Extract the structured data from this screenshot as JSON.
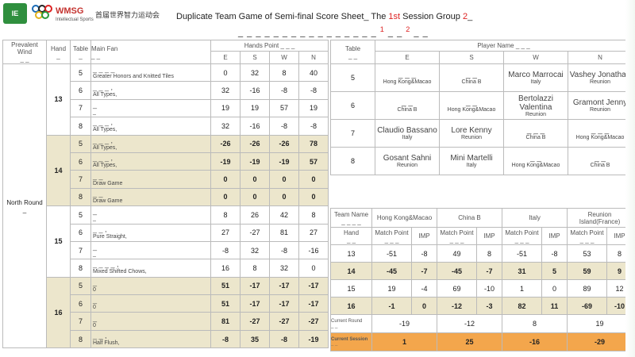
{
  "header": {
    "logo1_text": "IE",
    "logo_text": "WMSG",
    "logo_sub": "Intellectual Sports",
    "logo_cn": "首届世界智力运动会",
    "title_part1": "Duplicate Team Game of Semi-final Score Sheet_ The ",
    "title_session": "1st",
    "title_part2": " Session Group ",
    "title_group": "2",
    "title_tail": "_",
    "title_cn_part1": "_ _ _ _ _ _ _ _ _ _ _ _ _ _ _ _ ",
    "title_cn_red": "1",
    "title_cn_part2": " _ _ ",
    "title_cn_red2": "2",
    "title_cn_part3": " _ _"
  },
  "left": {
    "h_prevalent": "Prevalent Wind",
    "h_prevalent_cn": "_ _",
    "h_hand": "Hand",
    "h_hand_cn": "_",
    "h_table": "Table",
    "h_table_cn": "_",
    "h_mainfan": "Main Fan",
    "h_mainfan_cn": "_ _",
    "h_hands_point": "Hands Point",
    "h_hands_point_cn": "_ _ _",
    "h_e": "E",
    "h_s": "S",
    "h_w": "W",
    "h_n": "N",
    "wind": "North Round",
    "wind_cn": "_",
    "hands": [
      {
        "num": "13",
        "rows": [
          {
            "t": "5",
            "cn": "_ _ _ _",
            "en": "Greater Honors and Knitted Tiles",
            "e": "0",
            "s": "32",
            "w": "8",
            "n": "40",
            "beige": false
          },
          {
            "t": "6",
            "cn": "_ _ _ ,",
            "en": "All Types,",
            "e": "32",
            "s": "-16",
            "w": "-8",
            "n": "-8",
            "beige": false
          },
          {
            "t": "7",
            "cn": "_",
            "en": "_",
            "e": "19",
            "s": "19",
            "w": "57",
            "n": "19",
            "beige": false
          },
          {
            "t": "8",
            "cn": "_ _ _ ,",
            "en": "All Types,",
            "e": "32",
            "s": "-16",
            "w": "-8",
            "n": "-8",
            "beige": false
          }
        ]
      },
      {
        "num": "14",
        "rows": [
          {
            "t": "5",
            "cn": "_ _ _ ,",
            "en": "All Types,",
            "e": "-26",
            "s": "-26",
            "w": "-26",
            "n": "78",
            "beige": true
          },
          {
            "t": "6",
            "cn": "_ _ _ ,",
            "en": "All Types,",
            "e": "-19",
            "s": "-19",
            "w": "-19",
            "n": "57",
            "beige": true
          },
          {
            "t": "7",
            "cn": "_ _",
            "en": "Draw Game",
            "e": "0",
            "s": "0",
            "w": "0",
            "n": "0",
            "beige": true
          },
          {
            "t": "8",
            "cn": "_ _",
            "en": "Draw Game",
            "e": "0",
            "s": "0",
            "w": "0",
            "n": "0",
            "beige": true
          }
        ]
      },
      {
        "num": "15",
        "rows": [
          {
            "t": "5",
            "cn": "_",
            "en": "_",
            "e": "8",
            "s": "26",
            "w": "42",
            "n": "8",
            "beige": false
          },
          {
            "t": "6",
            "cn": "_ _ ,",
            "en": "Pure Straight,",
            "e": "27",
            "s": "-27",
            "w": "81",
            "n": "27",
            "beige": false
          },
          {
            "t": "7",
            "cn": "_",
            "en": "_",
            "e": "-8",
            "s": "32",
            "w": "-8",
            "n": "-16",
            "beige": false
          },
          {
            "t": "8",
            "cn": "_ _ _ _ ,",
            "en": "Mixed Shifted Chows,",
            "e": "16",
            "s": "8",
            "w": "32",
            "n": "0",
            "beige": false
          }
        ]
      },
      {
        "num": "16",
        "rows": [
          {
            "t": "5",
            "cn": "_",
            "en": "0",
            "e": "51",
            "s": "-17",
            "w": "-17",
            "n": "-17",
            "beige": true
          },
          {
            "t": "6",
            "cn": "_",
            "en": "0",
            "e": "51",
            "s": "-17",
            "w": "-17",
            "n": "-17",
            "beige": true
          },
          {
            "t": "7",
            "cn": "_",
            "en": "0",
            "e": "81",
            "s": "-27",
            "w": "-27",
            "n": "-27",
            "beige": true
          },
          {
            "t": "8",
            "cn": "_ _ ,",
            "en": "Half Flush,",
            "e": "-8",
            "s": "35",
            "w": "-8",
            "n": "-19",
            "beige": true
          }
        ]
      }
    ]
  },
  "players": {
    "h_table": "Table",
    "h_table_cn": "_ _",
    "h_player_name": "Player Name",
    "h_player_name_cn": "_ _ _",
    "h_e": "E",
    "h_s": "S",
    "h_w": "W",
    "h_n": "N",
    "rows": [
      {
        "t": "5",
        "e": [
          "_ _ _",
          "Hong Kong&Macao"
        ],
        "s": [
          "_ _",
          "China B"
        ],
        "w": [
          "Marco Marrocai",
          "Italy"
        ],
        "n": [
          "Vashey Jonathan",
          "Reunion"
        ]
      },
      {
        "t": "6",
        "e": [
          "_ _",
          "China B"
        ],
        "s": [
          "_ _",
          "Hong Kong&Macao"
        ],
        "w": [
          "Bertolazzi Valentina",
          "Reunion"
        ],
        "n": [
          "Gramont Jenny",
          "Reunion"
        ]
      },
      {
        "t": "7",
        "e": [
          "Claudio Bassano",
          "Italy"
        ],
        "s": [
          "Lore Kenny",
          "Reunion"
        ],
        "w": [
          "_ _ _",
          "China B"
        ],
        "n": [
          "_ _ _",
          "Hong Kong&Macao"
        ]
      },
      {
        "t": "8",
        "e": [
          "Gosant Sahni",
          "Reunion"
        ],
        "s": [
          "Mini Martelli",
          "Italy"
        ],
        "w": [
          "_ _",
          "Hong Kong&Macao"
        ],
        "n": [
          "_ _",
          "China B"
        ]
      }
    ]
  },
  "scores": {
    "h_team_name": "Team Name",
    "h_team_name_cn": "_ _ _ _",
    "teams": [
      "Hong Kong&Macao",
      "China B",
      "Italy",
      "Reunion Island(France)"
    ],
    "h_hand": "Hand",
    "h_hand_cn": "_ _",
    "h_match_point": "Match Point",
    "h_match_point_cn": "_ _ _",
    "h_imp": "IMP",
    "rows": [
      {
        "hand": "13",
        "v": [
          "-51",
          "-8",
          "49",
          "8",
          "-51",
          "-8",
          "53",
          "8"
        ],
        "beige": false
      },
      {
        "hand": "14",
        "v": [
          "-45",
          "-7",
          "-45",
          "-7",
          "31",
          "5",
          "59",
          "9"
        ],
        "beige": true
      },
      {
        "hand": "15",
        "v": [
          "19",
          "-4",
          "69",
          "-10",
          "1",
          "0",
          "89",
          "12"
        ],
        "beige": false
      },
      {
        "hand": "16",
        "v": [
          "-1",
          "0",
          "-12",
          "-3",
          "82",
          "11",
          "-69",
          "-10"
        ],
        "beige": true
      }
    ],
    "current_round_label": "Current Round",
    "current_round_cn": "_ _",
    "current_round": [
      "-19",
      "-12",
      "8",
      "19"
    ],
    "current_session_label": "Current Session",
    "current_session_cn": "_ _",
    "current_session": [
      "1",
      "25",
      "-16",
      "-29"
    ]
  },
  "colors": {
    "beige": "#ece6cc",
    "orange": "#f3a64c",
    "accent_red": "#dd2222"
  }
}
